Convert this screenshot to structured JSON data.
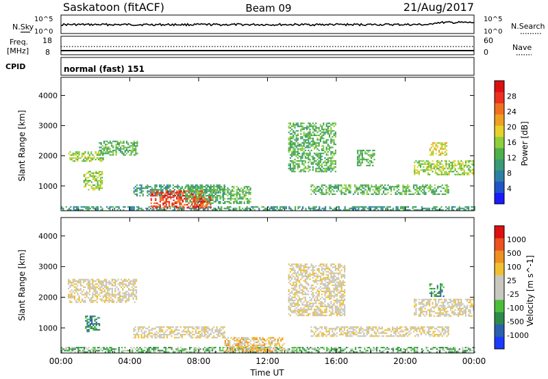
{
  "header": {
    "station": "Saskatoon (fitACF)",
    "beam": "Beam 09",
    "date": "21/Aug/2017"
  },
  "nsky_panel": {
    "left_label": "N.Sky",
    "right_label": "N.Search",
    "left_ticks": [
      "10^5",
      "10^0"
    ],
    "right_ticks": [
      "10^5",
      "10^0"
    ]
  },
  "freq_panel": {
    "left_label_1": "Freq.",
    "left_label_2": "[MHz]",
    "right_label": "Nave",
    "left_ticks": [
      "18",
      "8"
    ],
    "right_ticks": [
      "60",
      "0"
    ]
  },
  "cpid": {
    "label": "CPID",
    "value": "normal (fast) 151"
  },
  "chart_data": [
    {
      "type": "heatmap",
      "name": "power",
      "ylabel": "Slant Range [km]",
      "xlabel": "",
      "x_ticks": [
        "00:00",
        "04:00",
        "08:00",
        "12:00",
        "16:00",
        "20:00",
        "00:00"
      ],
      "y_ticks": [
        1000,
        2000,
        3000,
        4000
      ],
      "xlim_hours": [
        0,
        24
      ],
      "ylim_km": [
        180,
        4600
      ],
      "colorbar": {
        "label": "Power [dB]",
        "ticks": [
          "4",
          "8",
          "12",
          "16",
          "20",
          "24",
          "28"
        ],
        "colors": [
          "#1a1aff",
          "#1f55c8",
          "#2e7fa6",
          "#3a9a77",
          "#4db04a",
          "#8fcf3c",
          "#e6d22a",
          "#f0a020",
          "#f07020",
          "#ee3020",
          "#dd1010"
        ]
      },
      "echo_regions": [
        {
          "x0": 0.0,
          "x1": 24.0,
          "y0": 200,
          "y1": 330,
          "level": 3
        },
        {
          "x0": 0.4,
          "x1": 2.5,
          "y0": 1850,
          "y1": 2150,
          "level": 5
        },
        {
          "x0": 1.3,
          "x1": 2.4,
          "y0": 900,
          "y1": 1500,
          "level": 5
        },
        {
          "x0": 2.2,
          "x1": 4.4,
          "y0": 2050,
          "y1": 2500,
          "level": 4
        },
        {
          "x0": 4.2,
          "x1": 9.5,
          "y0": 700,
          "y1": 1050,
          "level": 3
        },
        {
          "x0": 5.2,
          "x1": 8.2,
          "y0": 300,
          "y1": 850,
          "level": 9
        },
        {
          "x0": 7.2,
          "x1": 11.0,
          "y0": 450,
          "y1": 1000,
          "level": 4
        },
        {
          "x0": 7.6,
          "x1": 8.7,
          "y0": 300,
          "y1": 650,
          "level": 9
        },
        {
          "x0": 13.2,
          "x1": 16.0,
          "y0": 1500,
          "y1": 3100,
          "level": 4
        },
        {
          "x0": 14.5,
          "x1": 22.5,
          "y0": 750,
          "y1": 1050,
          "level": 4
        },
        {
          "x0": 17.2,
          "x1": 18.2,
          "y0": 1700,
          "y1": 2200,
          "level": 4
        },
        {
          "x0": 20.5,
          "x1": 24.0,
          "y0": 1400,
          "y1": 1850,
          "level": 5
        },
        {
          "x0": 21.4,
          "x1": 22.4,
          "y0": 2050,
          "y1": 2450,
          "level": 6
        }
      ]
    },
    {
      "type": "heatmap",
      "name": "velocity",
      "ylabel": "Slant Range [km]",
      "xlabel": "Time UT",
      "x_ticks": [
        "00:00",
        "04:00",
        "08:00",
        "12:00",
        "16:00",
        "20:00",
        "00:00"
      ],
      "y_ticks": [
        1000,
        2000,
        3000,
        4000
      ],
      "xlim_hours": [
        0,
        24
      ],
      "ylim_km": [
        180,
        4600
      ],
      "colorbar": {
        "label": "Velocity [m s^-1]",
        "ticks": [
          "1000",
          "500",
          "100",
          "25",
          "-25",
          "-100",
          "-500",
          "-1000"
        ],
        "colors": [
          "#1a3aff",
          "#2b5fb0",
          "#2e8a4a",
          "#4bbf3a",
          "#c8c8c0",
          "#c8c8c0",
          "#f0c030",
          "#f09020",
          "#ee5020",
          "#dd1010"
        ]
      },
      "echo_regions": [
        {
          "x0": 0.0,
          "x1": 24.0,
          "y0": 200,
          "y1": 380,
          "level": 3
        },
        {
          "x0": 0.4,
          "x1": 4.4,
          "y0": 1850,
          "y1": 2600,
          "level": 5
        },
        {
          "x0": 1.4,
          "x1": 2.2,
          "y0": 900,
          "y1": 1400,
          "level": 2
        },
        {
          "x0": 4.2,
          "x1": 9.5,
          "y0": 700,
          "y1": 1050,
          "level": 5
        },
        {
          "x0": 9.5,
          "x1": 13.0,
          "y0": 220,
          "y1": 700,
          "level": 6
        },
        {
          "x0": 13.2,
          "x1": 16.5,
          "y0": 1400,
          "y1": 3100,
          "level": 5
        },
        {
          "x0": 14.5,
          "x1": 22.5,
          "y0": 750,
          "y1": 1050,
          "level": 5
        },
        {
          "x0": 20.5,
          "x1": 24.0,
          "y0": 1400,
          "y1": 1950,
          "level": 5
        },
        {
          "x0": 21.4,
          "x1": 22.2,
          "y0": 2050,
          "y1": 2450,
          "level": 2
        }
      ]
    }
  ]
}
